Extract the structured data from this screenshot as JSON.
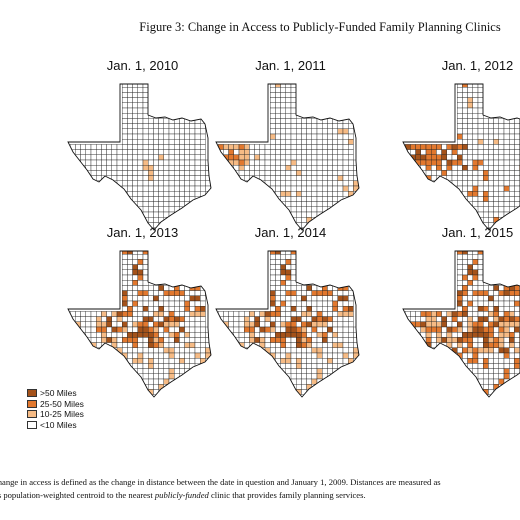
{
  "figure_title": "Figure 3: Change in Access to Publicly-Funded Family Planning Clinics",
  "panels": [
    {
      "label": "Jan. 1, 2010",
      "level": 0
    },
    {
      "label": "Jan. 1, 2011",
      "level": 1
    },
    {
      "label": "Jan. 1, 2012",
      "level": 2
    },
    {
      "label": "Jan. 1, 2013",
      "level": 3
    },
    {
      "label": "Jan. 1, 2014",
      "level": 3
    },
    {
      "label": "Jan. 1, 2015",
      "level": 4
    }
  ],
  "legend": [
    {
      "label": ">50 Miles",
      "color": "#a4521a"
    },
    {
      "label": "25-50 Miles",
      "color": "#e2782e"
    },
    {
      "label": "10-25 Miles",
      "color": "#f6bb85"
    },
    {
      "label": "<10 Miles",
      "color": "#ffffff"
    }
  ],
  "note": {
    "line1": "Change in access is defined as the change in distance between the date in question and January 1, 2009.  Distances are measured as",
    "line2_pre": "y's population-weighted centroid to the nearest ",
    "line2_em": "publicly-funded",
    "line2_post": " clinic that provides family planning services."
  }
}
